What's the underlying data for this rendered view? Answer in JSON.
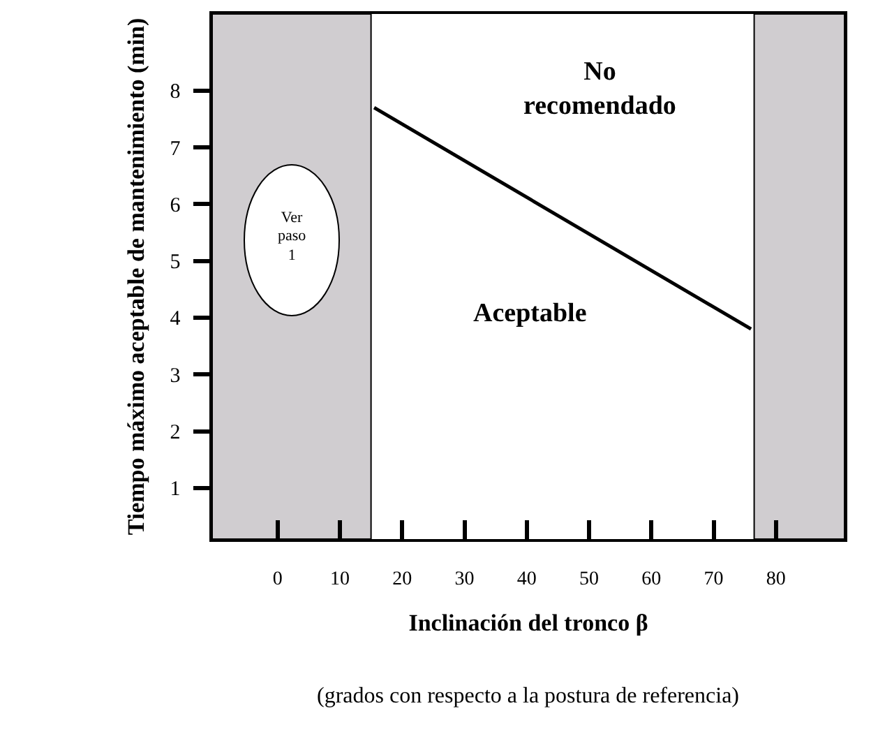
{
  "chart_data": {
    "type": "line",
    "xlabel": "Inclinación del tronco β",
    "ylabel": "Tiempo máximo aceptable de mantenimiento (min)",
    "x": [
      15.5,
      76
    ],
    "series": [
      {
        "color": "#000000",
        "values": [
          7.7,
          3.8
        ]
      }
    ],
    "xlim": [
      -10.5,
      91
    ],
    "ylim": [
      0.1,
      9.35
    ],
    "xticks": [
      0,
      10,
      20,
      30,
      40,
      50,
      60,
      70,
      80
    ],
    "yticks": [
      1,
      2,
      3,
      4,
      5,
      6,
      7,
      8
    ],
    "bands": [
      {
        "axis": "x",
        "from": -10.5,
        "to": 15,
        "color": "#d0cdd0"
      },
      {
        "axis": "x",
        "from": 76.5,
        "to": 91,
        "color": "#d0cdd0"
      }
    ],
    "annotations": [
      "No recomendado",
      "Aceptable",
      "Ver paso 1",
      "(grados con respecto a la postura de referencia)"
    ],
    "marker": "none",
    "line_style": "solid"
  }
}
